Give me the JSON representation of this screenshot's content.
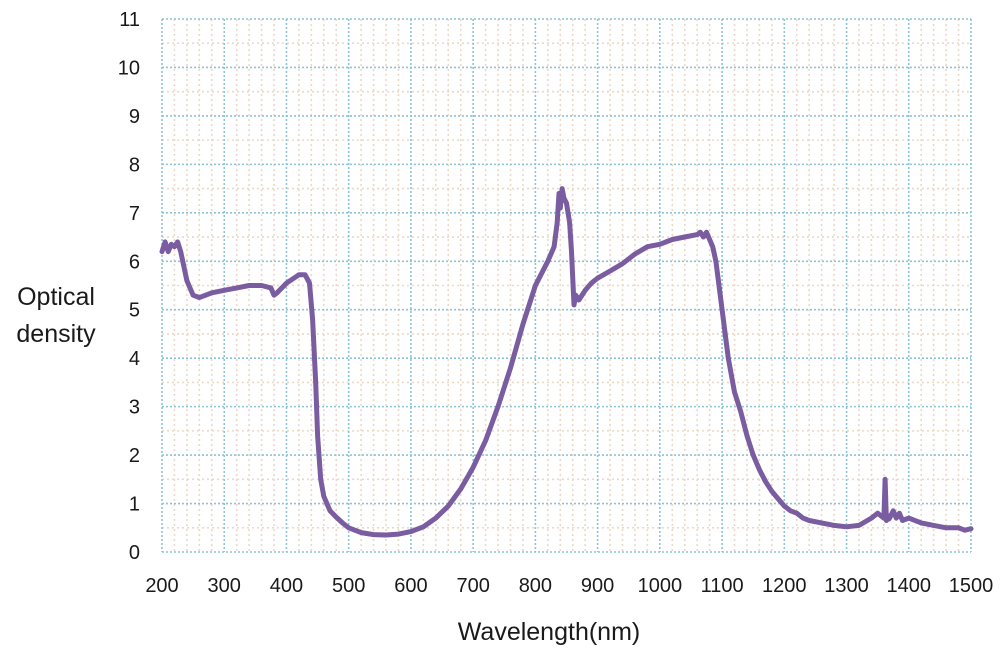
{
  "chart_data": {
    "type": "line",
    "title": "",
    "xlabel": "Wavelength(nm)",
    "ylabel_lines": [
      "Optical",
      "density"
    ],
    "xlim": [
      200,
      1500
    ],
    "ylim": [
      0,
      11
    ],
    "xticks": [
      200,
      300,
      400,
      500,
      600,
      700,
      800,
      900,
      1000,
      1100,
      1200,
      1300,
      1400,
      1500
    ],
    "yticks": [
      0,
      1,
      2,
      3,
      4,
      5,
      6,
      7,
      8,
      9,
      10,
      11
    ],
    "grid": true,
    "legend": "none",
    "colors": {
      "line": "#7a5ca0",
      "grid_major": "#8cc4d8",
      "grid_minor": "#ead9c6",
      "axis": "#8cc4d8"
    },
    "series": [
      {
        "x": [
          200,
          205,
          210,
          215,
          220,
          225,
          230,
          235,
          240,
          250,
          260,
          270,
          280,
          300,
          320,
          340,
          360,
          375,
          380,
          385,
          400,
          420,
          430,
          437,
          442,
          447,
          450,
          455,
          460,
          470,
          480,
          490,
          500,
          520,
          540,
          560,
          580,
          600,
          620,
          640,
          660,
          680,
          700,
          720,
          740,
          760,
          780,
          800,
          820,
          830,
          835,
          838,
          840,
          843,
          846,
          850,
          855,
          858,
          862,
          865,
          870,
          880,
          890,
          900,
          920,
          940,
          960,
          980,
          1000,
          1020,
          1040,
          1060,
          1065,
          1070,
          1075,
          1080,
          1085,
          1090,
          1095,
          1100,
          1105,
          1110,
          1120,
          1130,
          1140,
          1150,
          1160,
          1170,
          1180,
          1190,
          1200,
          1210,
          1220,
          1230,
          1240,
          1260,
          1280,
          1300,
          1320,
          1340,
          1350,
          1355,
          1360,
          1362,
          1364,
          1366,
          1368,
          1370,
          1375,
          1380,
          1385,
          1390,
          1400,
          1420,
          1440,
          1460,
          1480,
          1490,
          1500
        ],
        "y": [
          6.2,
          6.4,
          6.2,
          6.35,
          6.3,
          6.4,
          6.2,
          5.9,
          5.6,
          5.3,
          5.25,
          5.3,
          5.35,
          5.4,
          5.45,
          5.5,
          5.5,
          5.45,
          5.3,
          5.35,
          5.55,
          5.72,
          5.72,
          5.55,
          4.8,
          3.5,
          2.4,
          1.5,
          1.15,
          0.85,
          0.72,
          0.6,
          0.5,
          0.4,
          0.36,
          0.35,
          0.37,
          0.42,
          0.52,
          0.7,
          0.95,
          1.3,
          1.75,
          2.3,
          3.0,
          3.8,
          4.7,
          5.5,
          6.0,
          6.3,
          6.8,
          7.4,
          7.1,
          7.5,
          7.3,
          7.2,
          6.8,
          6.2,
          5.1,
          5.3,
          5.2,
          5.4,
          5.55,
          5.65,
          5.8,
          5.95,
          6.15,
          6.3,
          6.35,
          6.45,
          6.5,
          6.55,
          6.6,
          6.5,
          6.6,
          6.45,
          6.3,
          6.0,
          5.5,
          5.0,
          4.5,
          4.0,
          3.3,
          2.9,
          2.4,
          2.0,
          1.7,
          1.45,
          1.25,
          1.1,
          0.95,
          0.85,
          0.8,
          0.7,
          0.65,
          0.6,
          0.55,
          0.52,
          0.55,
          0.7,
          0.8,
          0.75,
          0.7,
          1.5,
          0.65,
          0.75,
          0.68,
          0.72,
          0.85,
          0.7,
          0.8,
          0.65,
          0.7,
          0.6,
          0.55,
          0.5,
          0.5,
          0.45,
          0.48
        ]
      }
    ]
  }
}
